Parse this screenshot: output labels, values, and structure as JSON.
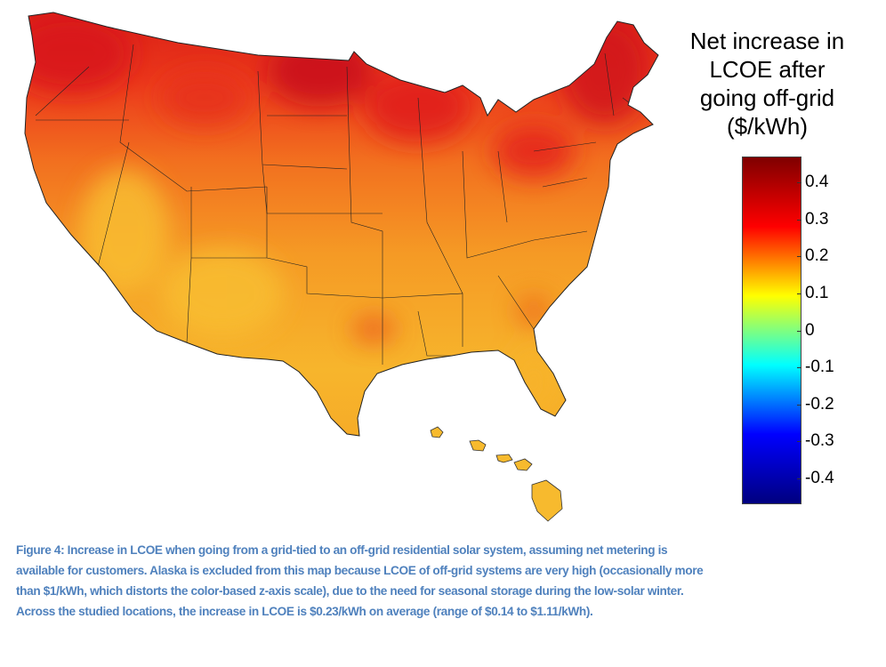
{
  "colorbar": {
    "title_lines": [
      "Net increase in",
      "LCOE after",
      "going off-grid",
      "($/kWh)"
    ],
    "ticks": [
      "0.4",
      "0.3",
      "0.2",
      "0.1",
      "0",
      "-0.1",
      "-0.2",
      "-0.3",
      "-0.4"
    ],
    "range": [
      -0.47,
      0.47
    ],
    "colormap": "jet",
    "colors": [
      "#00007f",
      "#0000ff",
      "#00ffff",
      "#ffff00",
      "#ff0000",
      "#7f0000"
    ]
  },
  "map": {
    "region": "Contiguous United States and Hawaii",
    "colors": {
      "north": "#e4261a",
      "mid": "#f47a20",
      "south": "#f7b52c",
      "borders": "#222222"
    }
  },
  "caption": {
    "lines": [
      "Figure 4: Increase in LCOE when going from a grid-tied to an off-grid residential solar system, assuming net metering is",
      "available for customers.  Alaska is excluded from this map because LCOE of off-grid systems are very high (occasionally more",
      "than $1/kWh, which distorts the color-based z-axis scale), due to the need for seasonal storage during the low-solar winter.",
      "Across the studied locations, the increase in LCOE is $0.23/kWh on average (range of $0.14 to $1.11/kWh)."
    ]
  }
}
